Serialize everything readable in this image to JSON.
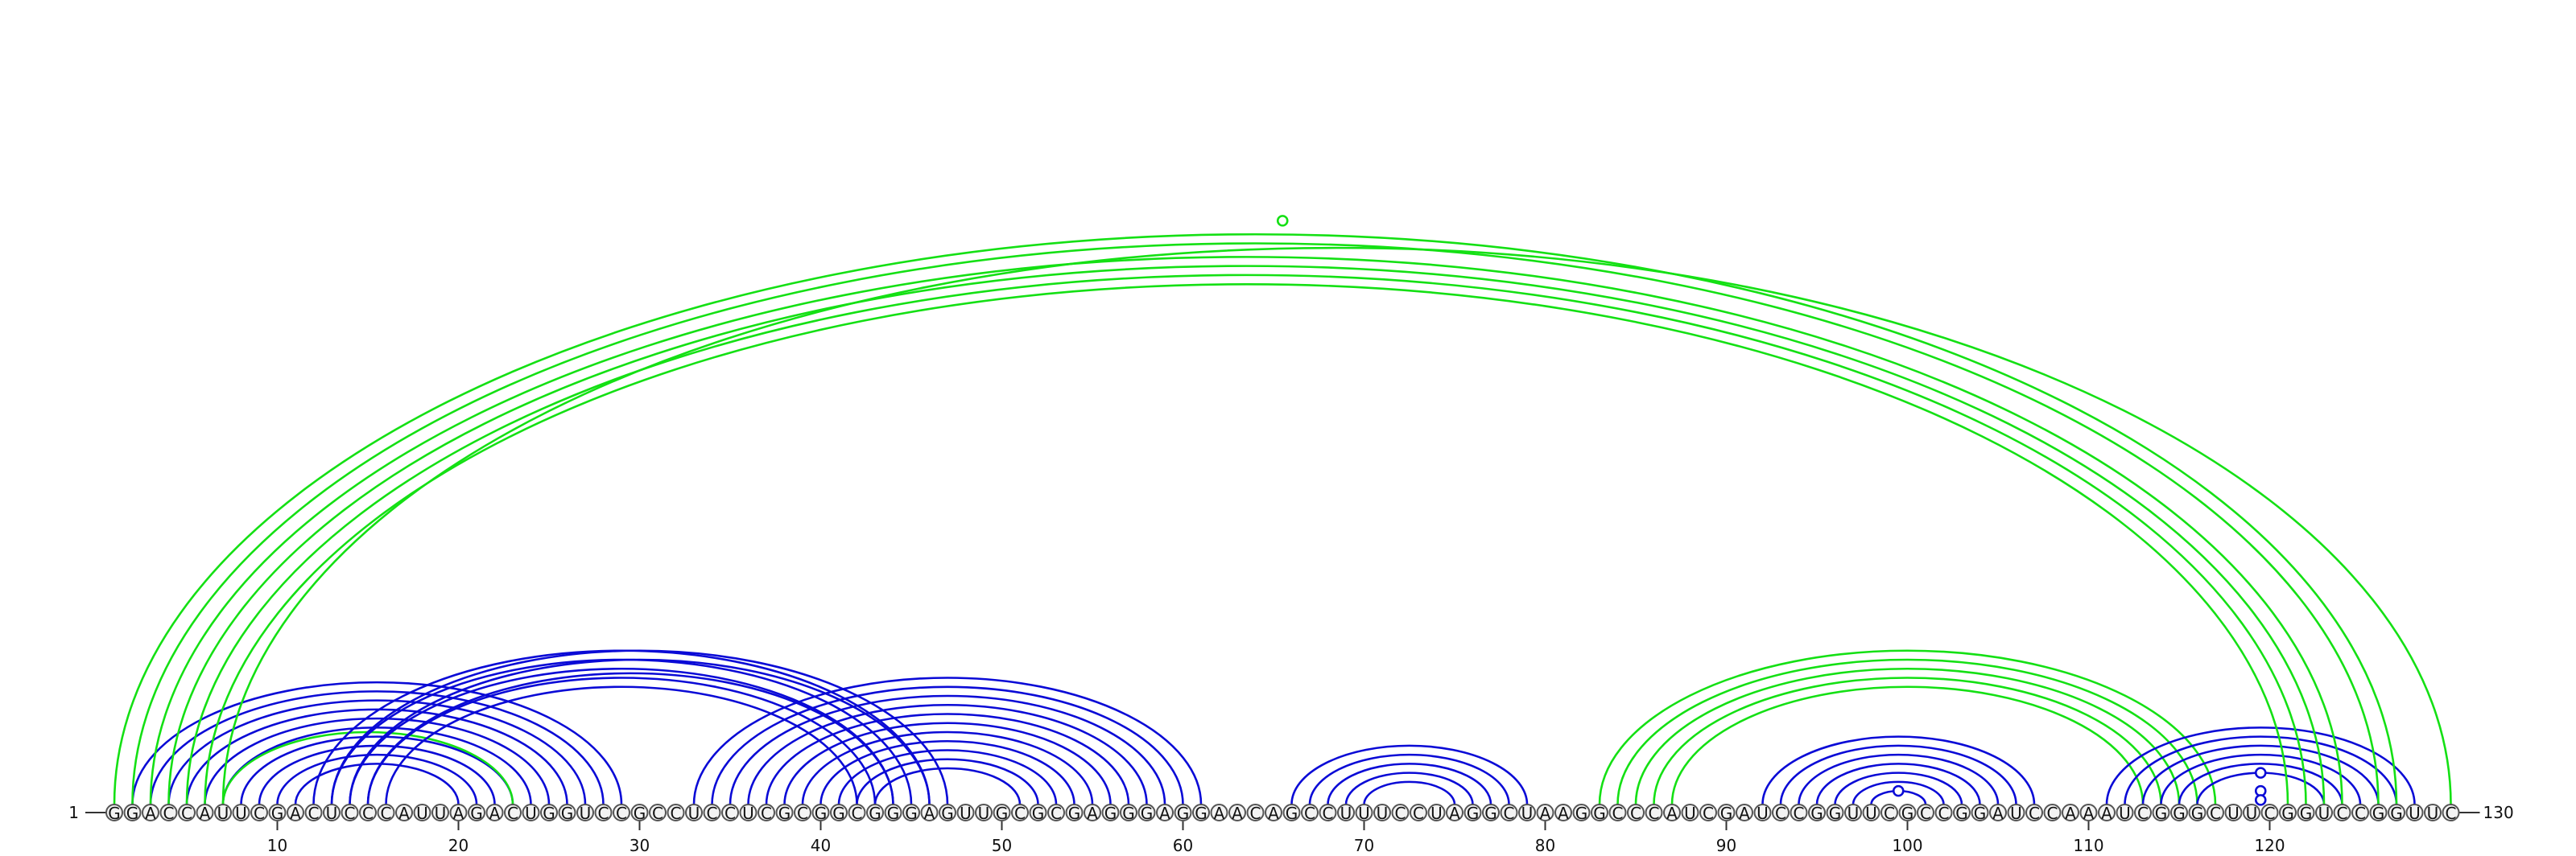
{
  "sequence": "GGACCAUUCGACUCCCAUUAGACUGGUCCGCCUCCUCGCGGCGGGAGUUGCGCGAGGGAGGAACAGCCUUUCCUAGGCUAAGGCCCAUCGAUCCGGUUCGCCGGAUCCAAAUCGGGCUUCGGUCCGGUUC",
  "start_label": "1",
  "end_label": "130",
  "ticks": [
    "10",
    "20",
    "30",
    "40",
    "50",
    "60",
    "70",
    "80",
    "90",
    "100",
    "110",
    "120"
  ],
  "colors": {
    "blue": "#0a0ad6",
    "green": "#14e014"
  },
  "diagram_data": {
    "arc_groups": [
      {
        "name": "blue-hairpin-1",
        "color": "blue",
        "pairs": [
          [
            2,
            29
          ],
          [
            3,
            28
          ],
          [
            4,
            27
          ],
          [
            5,
            26
          ],
          [
            6,
            25
          ],
          [
            7,
            24
          ],
          [
            8,
            23
          ],
          [
            9,
            22
          ],
          [
            10,
            21
          ],
          [
            11,
            20
          ]
        ]
      },
      {
        "name": "green-small",
        "color": "green",
        "pairs": [
          [
            7,
            23
          ]
        ]
      },
      {
        "name": "blue-cross-1",
        "color": "blue",
        "pairs": [
          [
            12,
            46
          ],
          [
            13,
            45
          ],
          [
            14,
            44
          ],
          [
            15,
            43
          ],
          [
            16,
            42
          ]
        ]
      },
      {
        "name": "blue-cross-2",
        "color": "blue",
        "pairs": [
          [
            13,
            47
          ],
          [
            14,
            46
          ],
          [
            15,
            44
          ]
        ]
      },
      {
        "name": "blue-hairpin-2",
        "color": "blue",
        "pairs": [
          [
            33,
            61
          ],
          [
            34,
            60
          ],
          [
            35,
            59
          ],
          [
            36,
            58
          ],
          [
            37,
            57
          ],
          [
            38,
            56
          ],
          [
            39,
            55
          ],
          [
            40,
            54
          ],
          [
            41,
            53
          ],
          [
            42,
            52
          ],
          [
            43,
            51
          ]
        ]
      },
      {
        "name": "blue-hairpin-3",
        "color": "blue",
        "pairs": [
          [
            66,
            79
          ],
          [
            67,
            78
          ],
          [
            68,
            77
          ],
          [
            69,
            76
          ],
          [
            70,
            75
          ]
        ]
      },
      {
        "name": "green-mid",
        "color": "green",
        "pairs": [
          [
            83,
            117
          ],
          [
            84,
            116
          ],
          [
            85,
            115
          ],
          [
            86,
            114
          ],
          [
            87,
            113
          ]
        ]
      },
      {
        "name": "blue-hairpin-4",
        "color": "blue",
        "pairs": [
          [
            92,
            107
          ],
          [
            93,
            106
          ],
          [
            94,
            105
          ],
          [
            95,
            104
          ],
          [
            96,
            103
          ],
          [
            97,
            102
          ],
          [
            98,
            101
          ]
        ]
      },
      {
        "name": "blue-hairpin-5",
        "color": "blue",
        "pairs": [
          [
            111,
            128
          ],
          [
            112,
            127
          ],
          [
            113,
            126
          ],
          [
            114,
            125
          ],
          [
            115,
            124
          ],
          [
            116,
            123
          ]
        ]
      },
      {
        "name": "green-long",
        "color": "green",
        "pairs": [
          [
            1,
            127
          ],
          [
            2,
            126
          ],
          [
            3,
            124
          ],
          [
            4,
            123
          ],
          [
            5,
            122
          ],
          [
            6,
            121
          ],
          [
            7,
            130
          ]
        ]
      }
    ],
    "markers": [
      {
        "color": "green",
        "at": [
          1,
          130
        ]
      },
      {
        "color": "blue",
        "at": [
          116,
          123
        ]
      },
      {
        "color": "blue",
        "at": [
          118,
          121
        ]
      },
      {
        "color": "blue",
        "at": [
          119,
          120
        ]
      },
      {
        "color": "blue",
        "at": [
          98,
          101
        ]
      }
    ]
  }
}
